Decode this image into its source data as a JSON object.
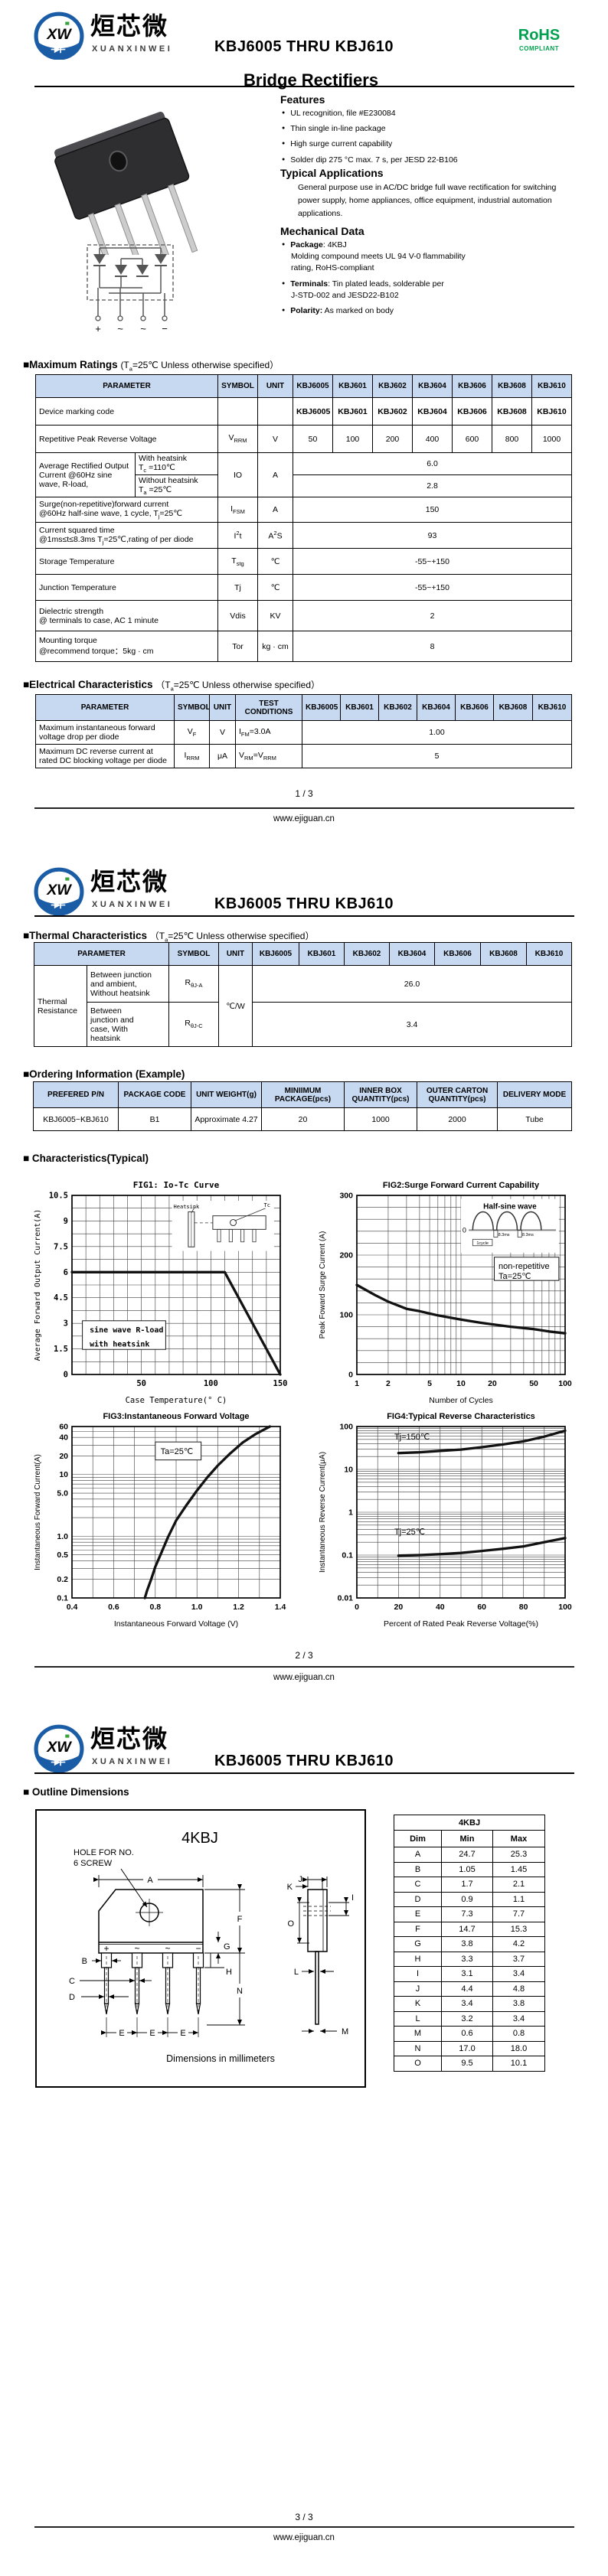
{
  "doc": {
    "title": "KBJ6005 THRU KBJ610",
    "website": "www.ejiguan.cn"
  },
  "colors": {
    "accent_blue": "#1b5ca6",
    "table_header_blue": "#c6d9f1",
    "rohs_green": "#00a14e"
  },
  "logo": {
    "monogram": "XXW",
    "zh": "烜芯微",
    "en": "XUANXINWEI"
  },
  "rohs": {
    "line1": "RoHS",
    "line2": "COMPLIANT"
  },
  "footers": [
    "1 / 3",
    "2 / 3",
    "3 / 3"
  ],
  "page1": {
    "product_title": "Bridge Rectifiers",
    "features_heading": "Features",
    "features": [
      "UL recognition, file #E230084",
      "Thin single in-line package",
      "High surge current capability",
      "Solder dip 275 °C max. 7 s, per JESD 22-B106"
    ],
    "applications_heading": "Typical  Applications",
    "applications_text": "General purpose use in AC/DC bridge full wave rectification for switching power supply, home appliances, office equipment, industrial automation applications.",
    "mechanical_heading": "Mechanical Data",
    "mech1_h": "<b>Package</b>: 4KBJ<br>Molding compound meets UL 94 V-0 flammability<br>rating, RoHS-compliant",
    "mech2_h": "<b>Terminals</b>: Tin plated leads, solderable per<br>J-STD-002 and JESD22-B102",
    "mech3_h": "<b>Polarity:</b> As marked on body",
    "terminals": [
      "+",
      "~",
      "~",
      "−"
    ]
  },
  "max_ratings": {
    "heading": "■Maximum Ratings ",
    "cond_h": "(T<sub>a</sub>=25℃ Unless otherwise specified）",
    "headers": [
      "PARAMETER",
      "SYMBOL",
      "UNIT"
    ],
    "devices": [
      "KBJ6005",
      "KBJ601",
      "KBJ602",
      "KBJ604",
      "KBJ606",
      "KBJ608",
      "KBJ610"
    ],
    "row_marking": {
      "label": "Device marking code",
      "values": [
        "KBJ6005",
        "KBJ601",
        "KBJ602",
        "KBJ604",
        "KBJ606",
        "KBJ608",
        "KBJ610"
      ]
    },
    "row_vrrm": {
      "label": "Repetitive Peak Reverse Voltage",
      "sym_h": "V<sub>RRM</sub>",
      "unit": "V",
      "values": [
        "50",
        "100",
        "200",
        "400",
        "600",
        "800",
        "1000"
      ]
    },
    "row_io": {
      "label": "Average Rectified Output Current @60Hz sine wave, R-load,",
      "sub1_h": "With heatsink<br>T<sub>c</sub> =110℃",
      "sub2_h": "Without heatsink<br>T<sub>a</sub> =25℃",
      "sym": "IO",
      "unit": "A",
      "v1": "6.0",
      "v2": "2.8"
    },
    "row_ifsm": {
      "label_h": "Surge(non-repetitive)forward current<br>@60Hz half-sine wave, 1 cycle,  T<sub>j</sub>=25℃",
      "sym_h": "I<sub>FSM</sub>",
      "unit": "A",
      "value": "150"
    },
    "row_i2t": {
      "label_h": "Current squared time<br>@1ms≤t≤8.3ms T<sub>j</sub>=25℃,rating of per diode",
      "sym_h": "I<sup>2</sup>t",
      "unit_h": "A<sup>2</sup>S",
      "value": "93"
    },
    "row_tstg": {
      "label": "Storage Temperature",
      "sym_h": "T<sub>stg</sub>",
      "unit": "℃",
      "value": "-55~+150"
    },
    "row_tj": {
      "label": "Junction Temperature",
      "sym": "Tj",
      "unit": "℃",
      "value": "-55~+150"
    },
    "row_vdis": {
      "label_h": "Dielectric strength<br>@ terminals to case, AC 1 minute",
      "sym": "Vdis",
      "unit": "KV",
      "value": "2"
    },
    "row_tor": {
      "label_h": "Mounting torque<br>@recommend torque：5kg · cm",
      "sym": "Tor",
      "unit": "kg · cm",
      "value": "8"
    }
  },
  "electrical": {
    "heading": "■Electrical Characteristics ",
    "cond_h": "（T<sub>a</sub>=25℃ Unless otherwise specified）",
    "headers": [
      "PARAMETER",
      "SYMBOL",
      "UNIT",
      "TEST CONDITIONS"
    ],
    "row_vf": {
      "label_h": "Maximum instantaneous forward<br>voltage drop per diode",
      "sym_h": "V<sub>F</sub>",
      "unit": "V",
      "test_h": "I<sub>FM</sub>=3.0A",
      "value": "1.00"
    },
    "row_irrm": {
      "label_h": "Maximum DC reverse current at<br>rated DC blocking voltage per diode",
      "sym_h": "I<sub>RRM</sub>",
      "unit": "μA",
      "test_h": "V<sub>RM</sub>=V<sub>RRM</sub>",
      "value": "5"
    }
  },
  "thermal": {
    "heading": "■Thermal Characteristics ",
    "cond_h": "（T<sub>a</sub>=25℃ Unless otherwise specified）",
    "headers": [
      "PARAMETER",
      "SYMBOL",
      "UNIT"
    ],
    "group": "Thermal Resistance",
    "row1": {
      "desc_h": "Between junction<br>and ambient,<br>Without heatsink",
      "sym_h": "R<sub>θJ-A</sub>",
      "value": "26.0"
    },
    "row2": {
      "desc_h": "Between<br>junction and<br>case, With<br>heatsink",
      "sym_h": "R<sub>θJ-C</sub>",
      "value": "3.4"
    },
    "unit": "℃/W"
  },
  "ordering": {
    "heading": "■Ordering Information (Example)",
    "headers": [
      "PREFERED P/N",
      "PACKAGE CODE",
      "UNIT WEIGHT(g)",
      "MINIIMUM PACKAGE(pcs)",
      "INNER BOX QUANTITY(pcs)",
      "OUTER CARTON QUANTITY(pcs)",
      "DELIVERY MODE"
    ],
    "row": [
      "KBJ6005~KBJ610",
      "B1",
      "Approximate 4.27",
      "20",
      "1000",
      "2000",
      "Tube"
    ]
  },
  "characteristics_heading": "■ Characteristics(Typical)",
  "chart_data": [
    {
      "type": "line",
      "name": "fig1",
      "mono": true,
      "title": "FIG1: Io-Tc Curve",
      "xlabel": "Case Temperature(° C)",
      "ylabel": "Average Forward Output Current(A)",
      "x_scale": "linear",
      "xlim": [
        0,
        150
      ],
      "x_grid_step": 10,
      "y_scale": "linear",
      "ylim": [
        0,
        10.5
      ],
      "y_grid_step": 0.75,
      "x_ticks": [
        [
          50,
          "50"
        ],
        [
          100,
          "100"
        ],
        [
          150,
          "150"
        ]
      ],
      "y_ticks": [
        [
          0,
          "0"
        ],
        [
          1.5,
          "1.5"
        ],
        [
          3,
          "3"
        ],
        [
          4.5,
          "4.5"
        ],
        [
          6,
          "6"
        ],
        [
          7.5,
          "7.5"
        ],
        [
          9,
          "9"
        ],
        [
          10.5,
          "10.5"
        ]
      ],
      "series": [
        {
          "name": "Io with heatsink",
          "points": [
            [
              0,
              6
            ],
            [
              110,
              6
            ],
            [
              150,
              0
            ]
          ]
        }
      ],
      "boxes": [
        {
          "fx": 0.05,
          "fy": 0.7,
          "fw": 0.4,
          "fh": 0.16
        }
      ],
      "annotations": [
        {
          "text": "sine wave R-load",
          "fx": 0.085,
          "fy": 0.765,
          "bold": true
        },
        {
          "text": "with heatsink",
          "fx": 0.085,
          "fy": 0.845,
          "bold": true
        }
      ],
      "inset": "heatsink",
      "inset_box": [
        0.48,
        0.03,
        0.49,
        0.28
      ],
      "inset_labels": [
        "Heatsink",
        "Tc"
      ]
    },
    {
      "type": "line",
      "name": "fig2",
      "title": "FIG2:Surge Forward Current Capability",
      "xlabel": "Number of Cycles",
      "ylabel": "Peak Foward Surge Current (A)",
      "x_scale": "log",
      "xlim": [
        1,
        100
      ],
      "y_scale": "linear",
      "ylim": [
        0,
        300
      ],
      "y_grid_step": 20,
      "x_ticks": [
        [
          1,
          "1"
        ],
        [
          2,
          "2"
        ],
        [
          5,
          "5"
        ],
        [
          10,
          "10"
        ],
        [
          20,
          "20"
        ],
        [
          50,
          "50"
        ],
        [
          100,
          "100"
        ]
      ],
      "y_ticks": [
        [
          0,
          "0"
        ],
        [
          100,
          "100"
        ],
        [
          200,
          "200"
        ],
        [
          300,
          "300"
        ]
      ],
      "series": [
        {
          "name": "IFSM",
          "points": [
            [
              1,
              150
            ],
            [
              1.5,
              133
            ],
            [
              2,
              122
            ],
            [
              3,
              110
            ],
            [
              4,
              106
            ],
            [
              5,
              102
            ],
            [
              6,
              99
            ],
            [
              8,
              95
            ],
            [
              10,
              92
            ],
            [
              15,
              87
            ],
            [
              20,
              84
            ],
            [
              30,
              80
            ],
            [
              50,
              76
            ],
            [
              70,
              72
            ],
            [
              100,
              69
            ]
          ]
        }
      ],
      "boxes": [
        {
          "fx": 0.66,
          "fy": 0.345,
          "fw": 0.31,
          "fh": 0.13
        }
      ],
      "annotations": [
        {
          "text": "non-repetitive",
          "fx": 0.68,
          "fy": 0.41,
          "size": 11
        },
        {
          "text": "Ta=25℃",
          "fx": 0.68,
          "fy": 0.465,
          "size": 11
        }
      ],
      "inset": "halfsine",
      "inset_box": [
        0.5,
        0.02,
        0.47,
        0.3
      ],
      "inset_labels": [
        "Half-sine wave",
        "0",
        "8.3ms",
        "8.3ms",
        "1cycle"
      ]
    },
    {
      "type": "line",
      "name": "fig3",
      "title": "FIG3:Instantaneous Forward Voltage",
      "xlabel": "Instantaneous Forward Voltage (V)",
      "ylabel": "Instantaneous Forward Current(A)",
      "x_scale": "linear",
      "xlim": [
        0.4,
        1.4
      ],
      "x_grid_step": 0.1,
      "y_scale": "log",
      "ylim": [
        0.1,
        60
      ],
      "x_ticks": [
        [
          0.4,
          "0.4"
        ],
        [
          0.6,
          "0.6"
        ],
        [
          0.8,
          "0.8"
        ],
        [
          1.0,
          "1.0"
        ],
        [
          1.2,
          "1.2"
        ],
        [
          1.4,
          "1.4"
        ]
      ],
      "y_ticks": [
        [
          0.1,
          "0.1"
        ],
        [
          0.2,
          "0.2"
        ],
        [
          0.5,
          "0.5"
        ],
        [
          1,
          "1.0"
        ],
        [
          5,
          "5.0"
        ],
        [
          10,
          "10"
        ],
        [
          20,
          "20"
        ],
        [
          40,
          "40"
        ],
        [
          60,
          "60"
        ]
      ],
      "series": [
        {
          "name": "VF @ Ta=25C",
          "points": [
            [
              0.75,
              0.1
            ],
            [
              0.76,
              0.13
            ],
            [
              0.78,
              0.2
            ],
            [
              0.8,
              0.32
            ],
            [
              0.83,
              0.55
            ],
            [
              0.86,
              0.95
            ],
            [
              0.9,
              1.8
            ],
            [
              0.95,
              3.2
            ],
            [
              1.0,
              5.5
            ],
            [
              1.05,
              9
            ],
            [
              1.1,
              14
            ],
            [
              1.16,
              22
            ],
            [
              1.22,
              33
            ],
            [
              1.28,
              45
            ],
            [
              1.35,
              60
            ]
          ]
        }
      ],
      "boxes": [
        {
          "fx": 0.4,
          "fy": 0.09,
          "fw": 0.22,
          "fh": 0.105
        }
      ],
      "annotations": [
        {
          "text": "Ta=25℃",
          "fx": 0.425,
          "fy": 0.16,
          "size": 11
        }
      ]
    },
    {
      "type": "line",
      "name": "fig4",
      "title": "FIG4:Typical Reverse Characteristics",
      "xlabel": "Percent of Rated Peak Reverse Voltage(%)",
      "ylabel": "Instantaneous Reverse Current(μA)",
      "x_scale": "linear",
      "xlim": [
        0,
        100
      ],
      "x_grid_step": 10,
      "y_scale": "log",
      "ylim": [
        0.01,
        100
      ],
      "x_ticks": [
        [
          0,
          "0"
        ],
        [
          20,
          "20"
        ],
        [
          40,
          "40"
        ],
        [
          60,
          "60"
        ],
        [
          80,
          "80"
        ],
        [
          100,
          "100"
        ]
      ],
      "y_ticks": [
        [
          0.01,
          "0.01"
        ],
        [
          0.1,
          "0.1"
        ],
        [
          1,
          "1"
        ],
        [
          10,
          "10"
        ],
        [
          100,
          "100"
        ]
      ],
      "series": [
        {
          "name": "Tj=150C",
          "points": [
            [
              20,
              24
            ],
            [
              30,
              25
            ],
            [
              40,
              27
            ],
            [
              50,
              29
            ],
            [
              60,
              33
            ],
            [
              70,
              38
            ],
            [
              80,
              45
            ],
            [
              90,
              58
            ],
            [
              100,
              80
            ]
          ]
        },
        {
          "name": "Tj=25C",
          "points": [
            [
              20,
              0.097
            ],
            [
              30,
              0.1
            ],
            [
              40,
              0.105
            ],
            [
              50,
              0.112
            ],
            [
              60,
              0.125
            ],
            [
              70,
              0.14
            ],
            [
              80,
              0.16
            ],
            [
              90,
              0.2
            ],
            [
              100,
              0.25
            ]
          ]
        }
      ],
      "annotations": [
        {
          "text": "Tj=150℃",
          "fx": 0.18,
          "fy": 0.075,
          "size": 11
        },
        {
          "text": "Tj=25℃",
          "fx": 0.18,
          "fy": 0.63,
          "size": 11
        }
      ]
    }
  ],
  "outline": {
    "heading": "■ Outline Dimensions",
    "pkg": "4KBJ",
    "hole_note_1": "HOLE FOR NO.",
    "hole_note_2": "6 SCREW",
    "mm_note": "Dimensions in millimeters",
    "labels": {
      "A": "A",
      "B": "B",
      "C": "C",
      "D": "D",
      "E": "E",
      "F": "F",
      "G": "G",
      "H": "H",
      "I": "I",
      "J": "J",
      "K": "K",
      "L": "L",
      "M": "M",
      "N": "N",
      "O": "O"
    },
    "table": {
      "title": "4KBJ",
      "headers": [
        "Dim",
        "Min",
        "Max"
      ],
      "rows": [
        [
          "A",
          "24.7",
          "25.3"
        ],
        [
          "B",
          "1.05",
          "1.45"
        ],
        [
          "C",
          "1.7",
          "2.1"
        ],
        [
          "D",
          "0.9",
          "1.1"
        ],
        [
          "E",
          "7.3",
          "7.7"
        ],
        [
          "F",
          "14.7",
          "15.3"
        ],
        [
          "G",
          "3.8",
          "4.2"
        ],
        [
          "H",
          "3.3",
          "3.7"
        ],
        [
          "I",
          "3.1",
          "3.4"
        ],
        [
          "J",
          "4.4",
          "4.8"
        ],
        [
          "K",
          "3.4",
          "3.8"
        ],
        [
          "L",
          "3.2",
          "3.4"
        ],
        [
          "M",
          "0.6",
          "0.8"
        ],
        [
          "N",
          "17.0",
          "18.0"
        ],
        [
          "O",
          "9.5",
          "10.1"
        ]
      ]
    }
  }
}
